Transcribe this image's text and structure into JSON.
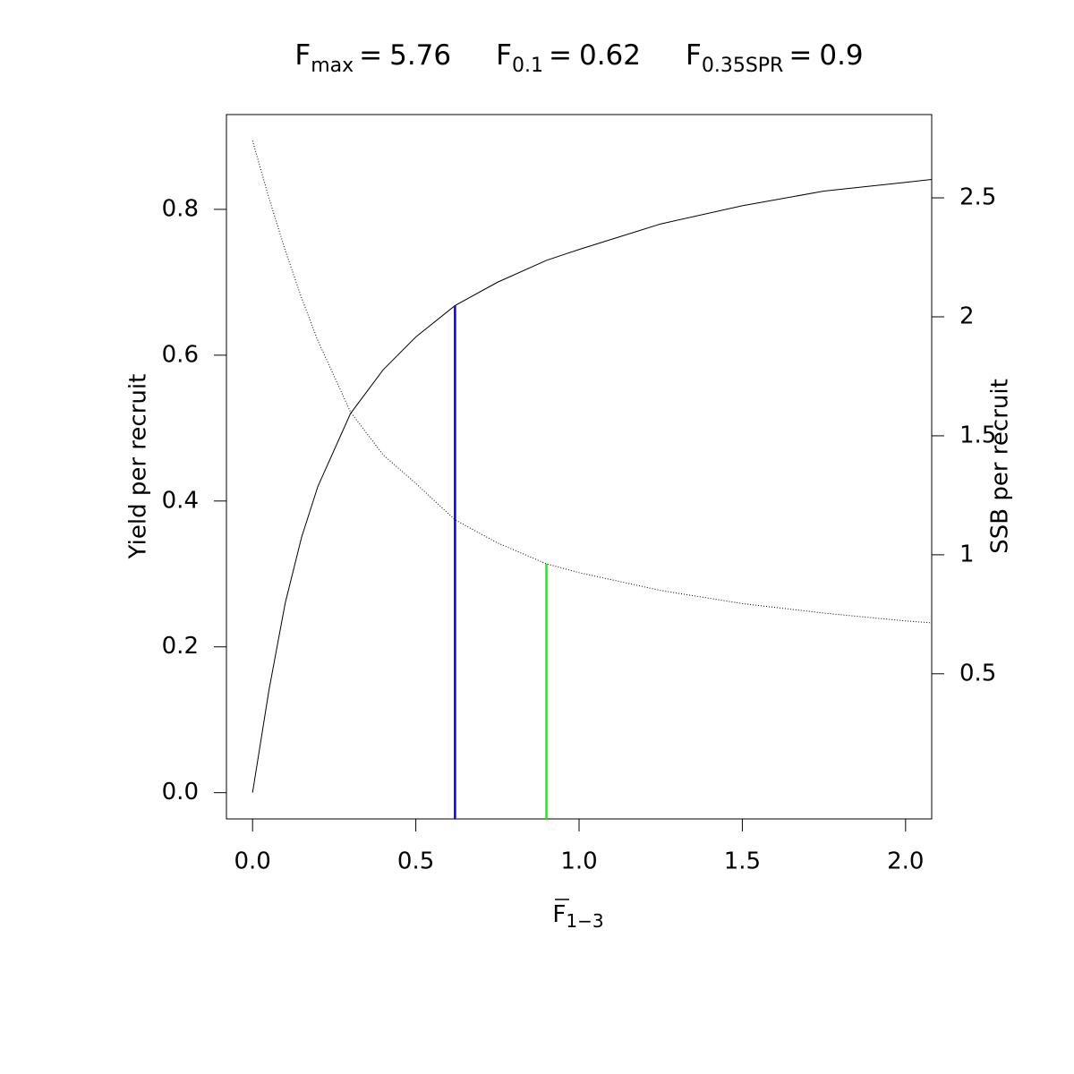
{
  "chart_data": {
    "type": "line",
    "title_items": [
      {
        "symbol": "F",
        "subscript": "max",
        "operator": "=",
        "value": 5.76
      },
      {
        "symbol": "F",
        "subscript": "0.1",
        "operator": "=",
        "value": 0.62,
        "line_color": "#0000ff",
        "line_top": 0.668,
        "line_axis": "y"
      },
      {
        "symbol": "F",
        "subscript": "0.35SPR",
        "operator": "=",
        "value": 0.9,
        "line_color": "#00ff00",
        "line_top": 0.962,
        "line_axis": "y2"
      }
    ],
    "x_label": {
      "symbol": "F",
      "subscript": "1−3",
      "overline": true
    },
    "y_label": "Yield per recruit",
    "y2_label": "SSB per recruit",
    "x": [
      0,
      0.05,
      0.1,
      0.15,
      0.2,
      0.3,
      0.4,
      0.5,
      0.62,
      0.75,
      0.9,
      1.0,
      1.25,
      1.5,
      1.75,
      2.0,
      2.08
    ],
    "series": [
      {
        "color": "#000000",
        "dash": "solid",
        "axis": "y",
        "values": [
          0,
          0.14,
          0.26,
          0.35,
          0.42,
          0.52,
          0.58,
          0.625,
          0.668,
          0.7,
          0.73,
          0.745,
          0.78,
          0.805,
          0.825,
          0.837,
          0.841
        ]
      },
      {
        "color": "#000000",
        "dash": "dotted",
        "axis": "y2",
        "values": [
          2.74,
          2.5,
          2.28,
          2.08,
          1.9,
          1.6,
          1.42,
          1.3,
          1.147,
          1.05,
          0.962,
          0.925,
          0.85,
          0.795,
          0.755,
          0.722,
          0.714
        ]
      }
    ],
    "xlim": [
      -0.08,
      2.08
    ],
    "ylim": [
      -0.036,
      0.93
    ],
    "y2lim": [
      -0.11,
      2.85
    ],
    "xticks": [
      {
        "value": 0,
        "label": "0.0"
      },
      0.5,
      {
        "value": 1,
        "label": "1.0"
      },
      1.5,
      {
        "value": 2,
        "label": "2.0"
      }
    ],
    "yticks": [
      {
        "value": 0,
        "label": "0.0"
      },
      0.2,
      0.4,
      0.6,
      0.8
    ],
    "y2ticks": [
      0.5,
      1,
      1.5,
      2,
      2.5
    ]
  }
}
